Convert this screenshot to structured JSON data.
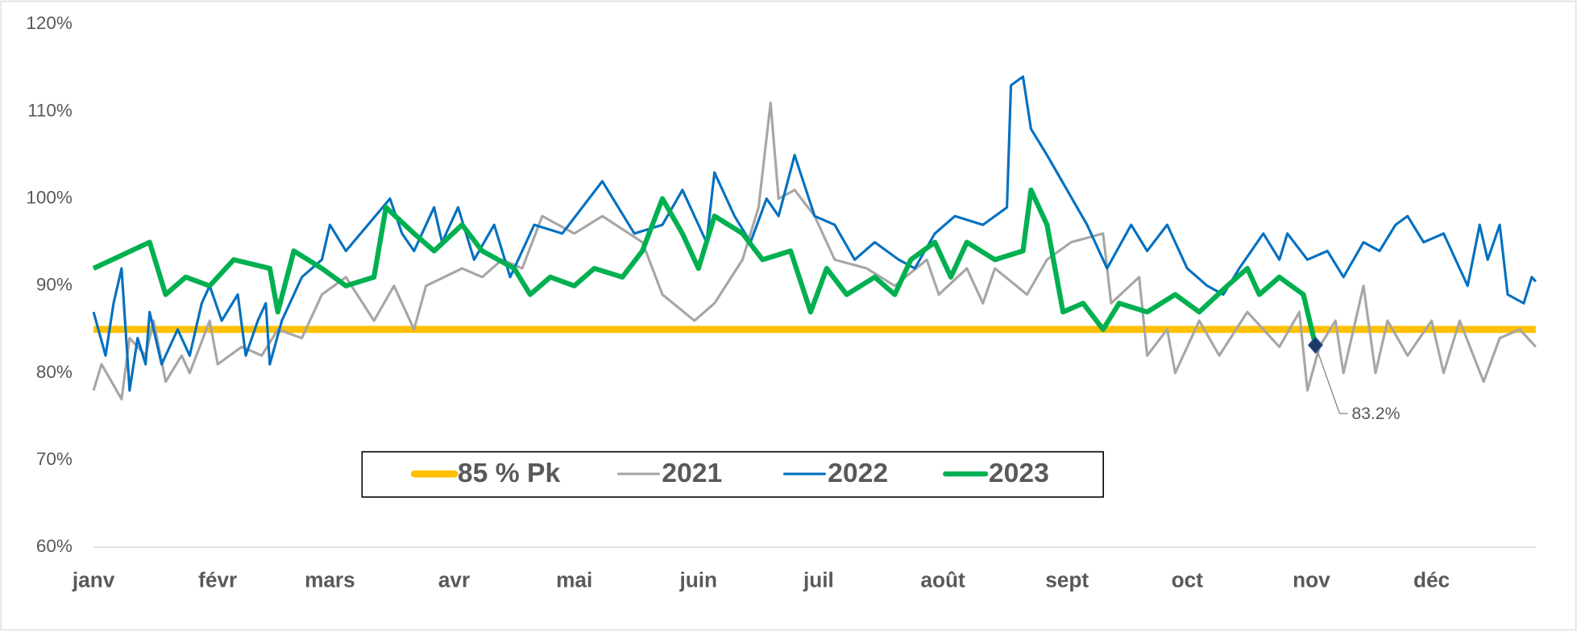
{
  "chart_data": {
    "type": "line",
    "xlim": [
      0,
      360
    ],
    "xticks": [
      {
        "value": 0,
        "label": "janv"
      },
      {
        "value": 31,
        "label": "févr"
      },
      {
        "value": 59,
        "label": "mars"
      },
      {
        "value": 90,
        "label": "avr"
      },
      {
        "value": 120,
        "label": "mai"
      },
      {
        "value": 151,
        "label": "juin"
      },
      {
        "value": 181,
        "label": "juil"
      },
      {
        "value": 212,
        "label": "août"
      },
      {
        "value": 243,
        "label": "sept"
      },
      {
        "value": 273,
        "label": "oct"
      },
      {
        "value": 304,
        "label": "nov"
      },
      {
        "value": 334,
        "label": "déc"
      }
    ],
    "ylim": [
      60,
      120
    ],
    "yticks": [
      {
        "value": 60,
        "label": "60%"
      },
      {
        "value": 70,
        "label": "70%"
      },
      {
        "value": 80,
        "label": "80%"
      },
      {
        "value": 90,
        "label": "90%"
      },
      {
        "value": 100,
        "label": "100%"
      },
      {
        "value": 110,
        "label": "110%"
      },
      {
        "value": 120,
        "label": "120%"
      }
    ],
    "grid": false,
    "legend": "bottom",
    "series": [
      {
        "name": "85 % Pk",
        "color": "#FFC000",
        "width": 7,
        "x": [
          0,
          360
        ],
        "values": [
          85,
          85
        ]
      },
      {
        "name": "2021",
        "color": "#A6A6A6",
        "width": 2.5,
        "x": [
          0,
          2,
          7,
          9,
          13,
          15,
          18,
          22,
          24,
          29,
          31,
          37,
          42,
          46,
          52,
          57,
          63,
          70,
          75,
          80,
          83,
          92,
          97,
          102,
          107,
          112,
          120,
          127,
          137,
          142,
          150,
          155,
          162,
          166,
          169,
          171,
          175,
          180,
          185,
          193,
          200,
          208,
          211,
          218,
          222,
          225,
          233,
          238,
          244,
          252,
          254,
          261,
          263,
          268,
          270,
          276,
          281,
          288,
          296,
          301,
          303,
          306,
          310,
          312,
          317,
          320,
          323,
          328,
          334,
          337,
          341,
          347,
          351,
          356,
          360
        ],
        "values": [
          78,
          81,
          77,
          84,
          82,
          86,
          79,
          82,
          80,
          86,
          81,
          83,
          82,
          85,
          84,
          89,
          91,
          86,
          90,
          85,
          90,
          92,
          91,
          93,
          92,
          98,
          96,
          98,
          95,
          89,
          86,
          88,
          93,
          99,
          111,
          100,
          101,
          98,
          93,
          92,
          90,
          93,
          89,
          92,
          88,
          92,
          89,
          93,
          95,
          96,
          88,
          91,
          82,
          85,
          80,
          86,
          82,
          87,
          83,
          87,
          78,
          83,
          86,
          80,
          90,
          80,
          86,
          82,
          86,
          80,
          86,
          79,
          84,
          85,
          83
        ]
      },
      {
        "name": "2022",
        "color": "#0070C0",
        "width": 2.5,
        "x": [
          0,
          3,
          5,
          7,
          9,
          11,
          13,
          14,
          17,
          21,
          24,
          27,
          29,
          32,
          36,
          38,
          41,
          43,
          44,
          47,
          52,
          57,
          59,
          63,
          74,
          77,
          80,
          85,
          87,
          91,
          95,
          100,
          104,
          107,
          110,
          117,
          127,
          135,
          142,
          147,
          153,
          155,
          160,
          164,
          168,
          171,
          175,
          180,
          185,
          190,
          195,
          201,
          205,
          210,
          215,
          222,
          228,
          229,
          232,
          234,
          238,
          243,
          248,
          253,
          259,
          263,
          268,
          273,
          278,
          282,
          286,
          292,
          296,
          298,
          303,
          308,
          312,
          317,
          321,
          325,
          328,
          332,
          337,
          340,
          343,
          346,
          348,
          351,
          353,
          357,
          359,
          360
        ],
        "values": [
          87,
          82,
          88,
          92,
          78,
          84,
          81,
          87,
          81,
          85,
          82,
          88,
          90,
          86,
          89,
          82,
          86,
          88,
          81,
          86,
          91,
          93,
          97,
          94,
          100,
          96,
          94,
          99,
          95,
          99,
          93,
          97,
          91,
          94,
          97,
          96,
          102,
          96,
          97,
          101,
          95,
          103,
          98,
          95,
          100,
          98,
          105,
          98,
          97,
          93,
          95,
          93,
          92,
          96,
          98,
          97,
          99,
          113,
          114,
          108,
          105,
          101,
          97,
          92,
          97,
          94,
          97,
          92,
          90,
          89,
          92,
          96,
          93,
          96,
          93,
          94,
          91,
          95,
          94,
          97,
          98,
          95,
          96,
          93,
          90,
          97,
          93,
          97,
          89,
          88,
          91,
          90.5
        ]
      },
      {
        "name": "2023",
        "color": "#00B050",
        "width": 5,
        "x": [
          0,
          14,
          18,
          23,
          29,
          35,
          44,
          46,
          50,
          57,
          63,
          70,
          73,
          80,
          85,
          92,
          97,
          105,
          109,
          114,
          120,
          125,
          132,
          137,
          142,
          147,
          151,
          155,
          162,
          167,
          174,
          179,
          183,
          188,
          195,
          200,
          204,
          210,
          214,
          218,
          225,
          232,
          234,
          238,
          242,
          247,
          252,
          256,
          263,
          270,
          276,
          283,
          288,
          291,
          296,
          302,
          305
        ],
        "values": [
          92,
          95,
          89,
          91,
          90,
          93,
          92,
          87,
          94,
          92,
          90,
          91,
          99,
          96,
          94,
          97,
          94,
          92,
          89,
          91,
          90,
          92,
          91,
          94,
          100,
          96,
          92,
          98,
          96,
          93,
          94,
          87,
          92,
          89,
          91,
          89,
          93,
          95,
          91,
          95,
          93,
          94,
          101,
          97,
          87,
          88,
          85,
          88,
          87,
          89,
          87,
          90,
          92,
          89,
          91,
          89,
          83.2
        ]
      }
    ],
    "annotation": {
      "label": "83.2%",
      "x": 305,
      "value": 83.2
    }
  }
}
